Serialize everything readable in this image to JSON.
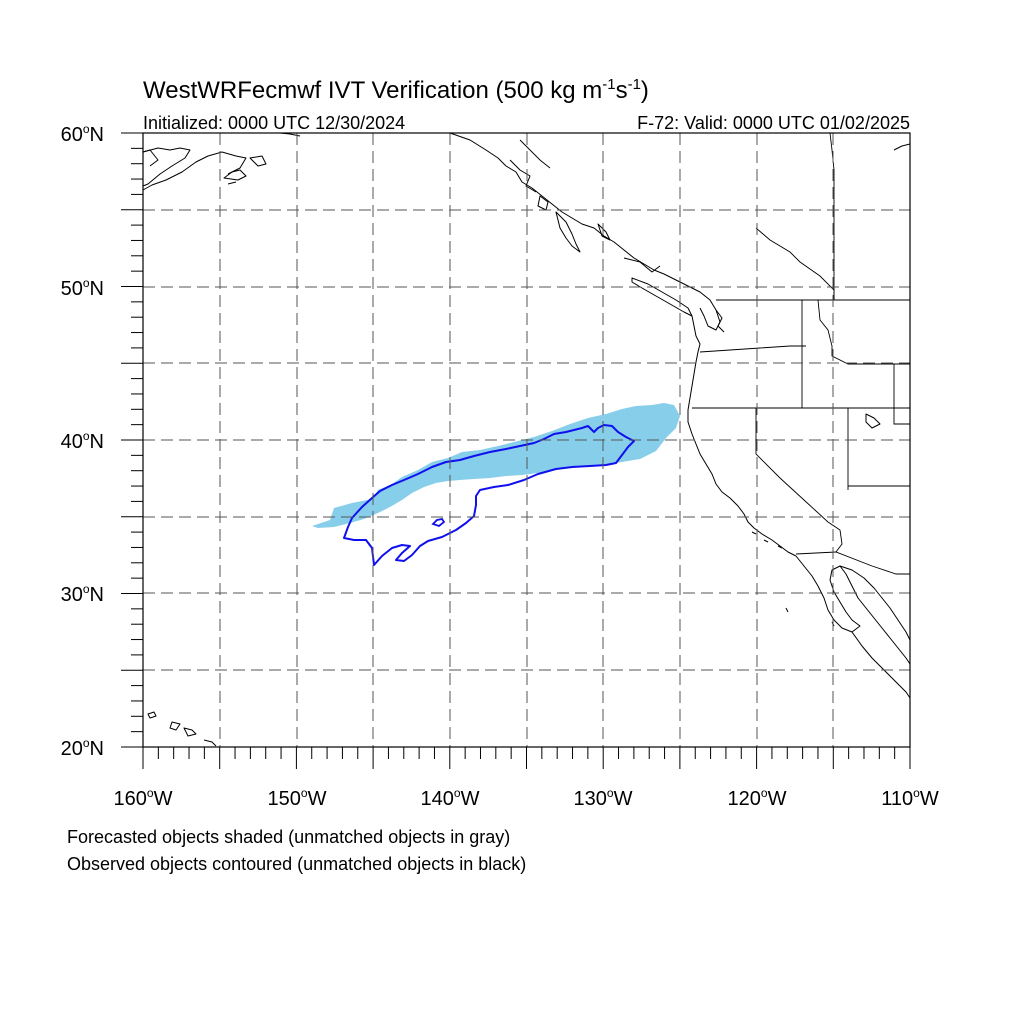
{
  "title": {
    "main": "WestWRFecmwf IVT Verification (500 kg m",
    "exp1": "-1",
    "mid": "s",
    "exp2": "-1",
    "close": ")"
  },
  "subtitle_left": "Initialized: 0000 UTC 12/30/2024",
  "subtitle_right": "F-72: Valid: 0000 UTC 01/02/2025",
  "lat_labels": [
    {
      "deg": "60",
      "suffix": "N"
    },
    {
      "deg": "50",
      "suffix": "N"
    },
    {
      "deg": "40",
      "suffix": "N"
    },
    {
      "deg": "30",
      "suffix": "N"
    },
    {
      "deg": "20",
      "suffix": "N"
    }
  ],
  "lon_labels": [
    {
      "deg": "160",
      "suffix": "W"
    },
    {
      "deg": "150",
      "suffix": "W"
    },
    {
      "deg": "140",
      "suffix": "W"
    },
    {
      "deg": "130",
      "suffix": "W"
    },
    {
      "deg": "120",
      "suffix": "W"
    },
    {
      "deg": "110",
      "suffix": "W"
    }
  ],
  "degree_symbol": "o",
  "legend": {
    "line1": "Forecasted objects shaded (unmatched objects in gray)",
    "line2": "Observed objects contoured (unmatched objects in black)"
  },
  "colors": {
    "forecast_fill": "#87ceeb",
    "observed_contour": "#1010ee",
    "coast": "#000000"
  }
}
